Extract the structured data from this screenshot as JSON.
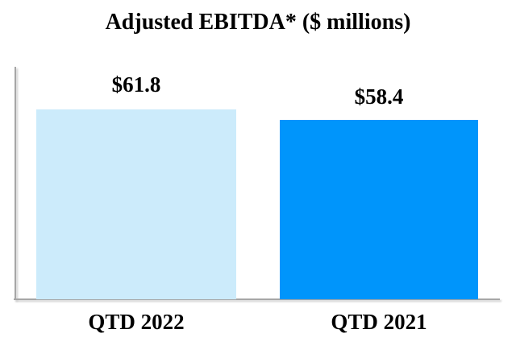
{
  "chart_data": {
    "type": "bar",
    "title": "Adjusted EBITDA* ($ millions)",
    "categories": [
      "QTD 2022",
      "QTD 2021"
    ],
    "values": [
      61.8,
      58.4
    ],
    "value_labels": [
      "$61.8",
      "$58.4"
    ],
    "series": [
      {
        "name": "QTD 2022",
        "values": [
          61.8
        ],
        "color": "#CCEBFB"
      },
      {
        "name": "QTD 2021",
        "values": [
          58.4
        ],
        "color": "#0095FB"
      }
    ],
    "bar_colors": [
      "#CCEBFB",
      "#0095FB"
    ],
    "axis_color": "#A6A6A6",
    "xlabel": "",
    "ylabel": "",
    "ylim": [
      0,
      76
    ],
    "grid": false,
    "legend": false
  }
}
